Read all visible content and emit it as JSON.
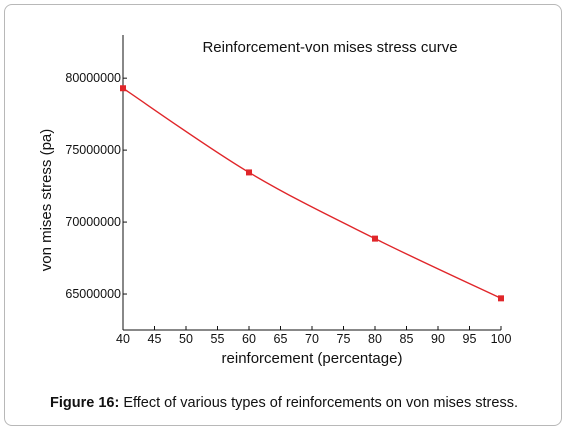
{
  "figure": {
    "label": "Figure 16:",
    "caption": "Effect of various types of reinforcements on von mises stress."
  },
  "chart_data": {
    "type": "line",
    "title": "Reinforcement-von mises stress curve",
    "xlabel": "reinforcement (percentage)",
    "ylabel": "von mises stress (pa)",
    "x": [
      40,
      60,
      80,
      100
    ],
    "series": [
      {
        "values": [
          79300000,
          73450000,
          68850000,
          64700000
        ]
      }
    ],
    "xlim": [
      40,
      100
    ],
    "ylim": [
      62500000,
      83000000
    ],
    "xticks": [
      "40",
      "45",
      "50",
      "55",
      "60",
      "65",
      "70",
      "75",
      "80",
      "85",
      "90",
      "95",
      "100"
    ],
    "yticks": [
      "65000000",
      "70000000",
      "75000000",
      "80000000"
    ],
    "ytick_values": [
      65000000,
      70000000,
      75000000,
      80000000
    ],
    "grid": false,
    "line_color": "#e0262a",
    "marker_color": "#e0262a"
  }
}
